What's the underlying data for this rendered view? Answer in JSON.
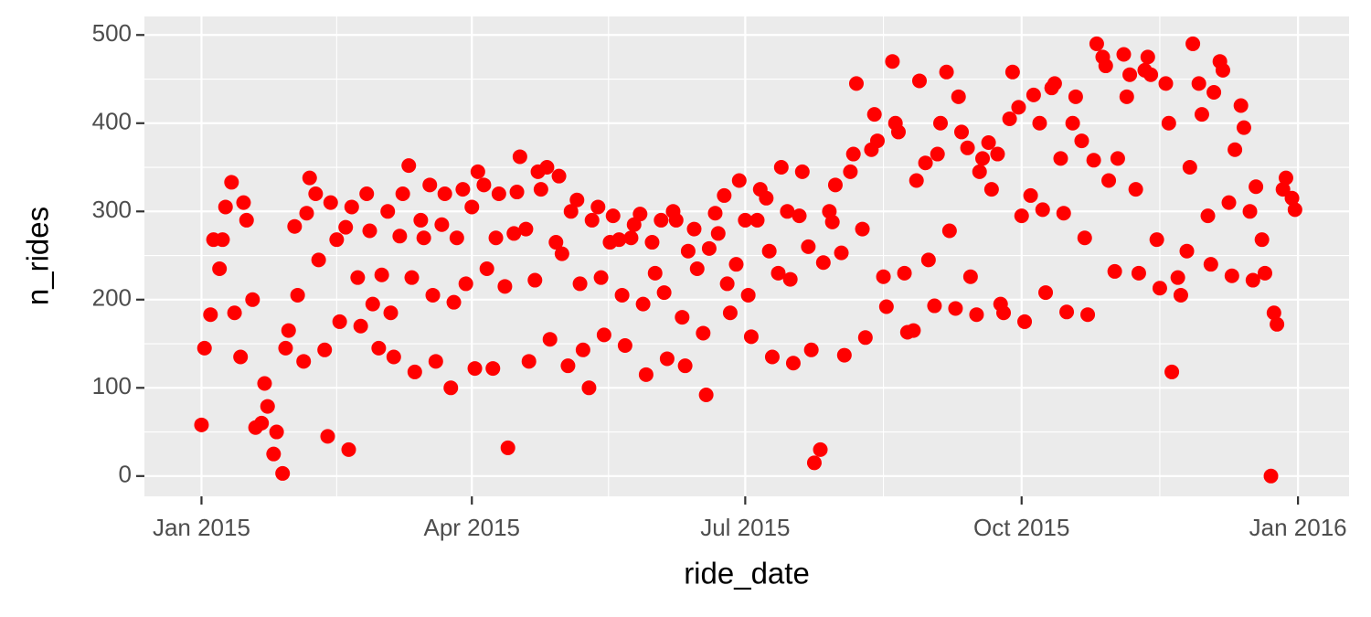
{
  "chart_data": {
    "type": "scatter",
    "x_label": "ride_date",
    "y_label": "n_rides",
    "color": "#ff0000",
    "grid": true,
    "xlim": [
      "2014-12-13",
      "2016-01-18"
    ],
    "xticks": [
      {
        "value": "2015-01-01",
        "label": "Jan 2015"
      },
      {
        "value": "2015-04-01",
        "label": "Apr 2015"
      },
      {
        "value": "2015-07-01",
        "label": "Jul 2015"
      },
      {
        "value": "2015-10-01",
        "label": "Oct 2015"
      },
      {
        "value": "2016-01-01",
        "label": "Jan 2016"
      }
    ],
    "ylim": [
      -23,
      521
    ],
    "yticks": [
      0,
      100,
      200,
      300,
      400,
      500
    ],
    "x": [
      "2015-01-01",
      "2015-01-02",
      "2015-01-04",
      "2015-01-05",
      "2015-01-07",
      "2015-01-08",
      "2015-01-09",
      "2015-01-11",
      "2015-01-12",
      "2015-01-14",
      "2015-01-15",
      "2015-01-16",
      "2015-01-18",
      "2015-01-19",
      "2015-01-21",
      "2015-01-22",
      "2015-01-23",
      "2015-01-25",
      "2015-01-26",
      "2015-01-28",
      "2015-01-29",
      "2015-01-30",
      "2015-02-01",
      "2015-02-02",
      "2015-02-04",
      "2015-02-05",
      "2015-02-06",
      "2015-02-08",
      "2015-02-09",
      "2015-02-11",
      "2015-02-12",
      "2015-02-13",
      "2015-02-15",
      "2015-02-16",
      "2015-02-18",
      "2015-02-19",
      "2015-02-20",
      "2015-02-22",
      "2015-02-23",
      "2015-02-25",
      "2015-02-26",
      "2015-02-27",
      "2015-03-01",
      "2015-03-02",
      "2015-03-04",
      "2015-03-05",
      "2015-03-06",
      "2015-03-08",
      "2015-03-09",
      "2015-03-11",
      "2015-03-12",
      "2015-03-13",
      "2015-03-15",
      "2015-03-16",
      "2015-03-18",
      "2015-03-19",
      "2015-03-20",
      "2015-03-22",
      "2015-03-23",
      "2015-03-25",
      "2015-03-26",
      "2015-03-27",
      "2015-03-29",
      "2015-03-30",
      "2015-04-01",
      "2015-04-02",
      "2015-04-03",
      "2015-04-05",
      "2015-04-06",
      "2015-04-08",
      "2015-04-09",
      "2015-04-10",
      "2015-04-12",
      "2015-04-13",
      "2015-04-15",
      "2015-04-16",
      "2015-04-17",
      "2015-04-19",
      "2015-04-20",
      "2015-04-22",
      "2015-04-23",
      "2015-04-24",
      "2015-04-26",
      "2015-04-27",
      "2015-04-29",
      "2015-04-30",
      "2015-05-01",
      "2015-05-03",
      "2015-05-04",
      "2015-05-06",
      "2015-05-07",
      "2015-05-08",
      "2015-05-10",
      "2015-05-11",
      "2015-05-13",
      "2015-05-14",
      "2015-05-15",
      "2015-05-17",
      "2015-05-18",
      "2015-05-20",
      "2015-05-21",
      "2015-05-22",
      "2015-05-24",
      "2015-05-25",
      "2015-05-27",
      "2015-05-28",
      "2015-05-29",
      "2015-05-31",
      "2015-06-01",
      "2015-06-03",
      "2015-06-04",
      "2015-06-05",
      "2015-06-07",
      "2015-06-08",
      "2015-06-10",
      "2015-06-11",
      "2015-06-12",
      "2015-06-14",
      "2015-06-15",
      "2015-06-17",
      "2015-06-18",
      "2015-06-19",
      "2015-06-21",
      "2015-06-22",
      "2015-06-24",
      "2015-06-25",
      "2015-06-26",
      "2015-06-28",
      "2015-06-29",
      "2015-07-01",
      "2015-07-02",
      "2015-07-03",
      "2015-07-05",
      "2015-07-06",
      "2015-07-08",
      "2015-07-09",
      "2015-07-10",
      "2015-07-12",
      "2015-07-13",
      "2015-07-15",
      "2015-07-16",
      "2015-07-17",
      "2015-07-19",
      "2015-07-20",
      "2015-07-22",
      "2015-07-23",
      "2015-07-24",
      "2015-07-26",
      "2015-07-27",
      "2015-07-29",
      "2015-07-30",
      "2015-07-31",
      "2015-08-02",
      "2015-08-03",
      "2015-08-05",
      "2015-08-06",
      "2015-08-07",
      "2015-08-09",
      "2015-08-10",
      "2015-08-12",
      "2015-08-13",
      "2015-08-14",
      "2015-08-16",
      "2015-08-17",
      "2015-08-19",
      "2015-08-20",
      "2015-08-21",
      "2015-08-23",
      "2015-08-24",
      "2015-08-26",
      "2015-08-27",
      "2015-08-28",
      "2015-08-30",
      "2015-08-31",
      "2015-09-02",
      "2015-09-03",
      "2015-09-04",
      "2015-09-06",
      "2015-09-07",
      "2015-09-09",
      "2015-09-10",
      "2015-09-11",
      "2015-09-13",
      "2015-09-14",
      "2015-09-16",
      "2015-09-17",
      "2015-09-18",
      "2015-09-20",
      "2015-09-21",
      "2015-09-23",
      "2015-09-24",
      "2015-09-25",
      "2015-09-27",
      "2015-09-28",
      "2015-09-30",
      "2015-10-01",
      "2015-10-02",
      "2015-10-04",
      "2015-10-05",
      "2015-10-07",
      "2015-10-08",
      "2015-10-09",
      "2015-10-11",
      "2015-10-12",
      "2015-10-14",
      "2015-10-15",
      "2015-10-16",
      "2015-10-18",
      "2015-10-19",
      "2015-10-21",
      "2015-10-22",
      "2015-10-23",
      "2015-10-25",
      "2015-10-26",
      "2015-10-28",
      "2015-10-29",
      "2015-10-30",
      "2015-11-01",
      "2015-11-02",
      "2015-11-04",
      "2015-11-05",
      "2015-11-06",
      "2015-11-08",
      "2015-11-09",
      "2015-11-11",
      "2015-11-12",
      "2015-11-13",
      "2015-11-15",
      "2015-11-16",
      "2015-11-18",
      "2015-11-19",
      "2015-11-20",
      "2015-11-22",
      "2015-11-23",
      "2015-11-25",
      "2015-11-26",
      "2015-11-27",
      "2015-11-29",
      "2015-11-30",
      "2015-12-02",
      "2015-12-03",
      "2015-12-04",
      "2015-12-06",
      "2015-12-07",
      "2015-12-09",
      "2015-12-10",
      "2015-12-11",
      "2015-12-13",
      "2015-12-14",
      "2015-12-16",
      "2015-12-17",
      "2015-12-18",
      "2015-12-20",
      "2015-12-21",
      "2015-12-23",
      "2015-12-24",
      "2015-12-25",
      "2015-12-27",
      "2015-12-28",
      "2015-12-30",
      "2015-12-31"
    ],
    "values": [
      58,
      145,
      183,
      268,
      235,
      268,
      305,
      333,
      185,
      135,
      310,
      290,
      200,
      55,
      60,
      105,
      79,
      25,
      50,
      3,
      145,
      165,
      283,
      205,
      130,
      298,
      338,
      320,
      245,
      143,
      45,
      310,
      268,
      175,
      282,
      30,
      305,
      225,
      170,
      320,
      278,
      195,
      145,
      228,
      300,
      185,
      135,
      272,
      320,
      352,
      225,
      118,
      290,
      270,
      330,
      205,
      130,
      285,
      320,
      100,
      197,
      270,
      325,
      218,
      305,
      122,
      345,
      330,
      235,
      122,
      270,
      320,
      215,
      32,
      275,
      322,
      362,
      280,
      130,
      222,
      345,
      325,
      350,
      155,
      265,
      340,
      252,
      125,
      300,
      313,
      218,
      143,
      100,
      290,
      305,
      225,
      160,
      265,
      295,
      268,
      205,
      148,
      270,
      285,
      297,
      195,
      115,
      265,
      230,
      290,
      208,
      133,
      300,
      290,
      180,
      125,
      255,
      280,
      235,
      162,
      92,
      258,
      298,
      275,
      318,
      218,
      185,
      240,
      335,
      290,
      205,
      158,
      290,
      325,
      315,
      255,
      135,
      230,
      350,
      300,
      223,
      128,
      295,
      345,
      260,
      143,
      15,
      30,
      242,
      300,
      288,
      330,
      253,
      137,
      345,
      365,
      445,
      280,
      157,
      370,
      410,
      380,
      226,
      192,
      470,
      400,
      390,
      230,
      163,
      165,
      335,
      448,
      355,
      245,
      193,
      365,
      400,
      458,
      278,
      190,
      430,
      390,
      372,
      226,
      183,
      345,
      360,
      378,
      325,
      365,
      195,
      185,
      405,
      458,
      418,
      295,
      175,
      318,
      432,
      400,
      302,
      208,
      440,
      445,
      360,
      298,
      186,
      400,
      430,
      380,
      270,
      183,
      358,
      490,
      475,
      465,
      335,
      232,
      360,
      478,
      430,
      455,
      325,
      230,
      460,
      475,
      455,
      268,
      213,
      445,
      400,
      118,
      225,
      205,
      255,
      350,
      490,
      445,
      410,
      295,
      240,
      435,
      470,
      460,
      310,
      227,
      370,
      420,
      395,
      300,
      222,
      328,
      268,
      230,
      0,
      185,
      172,
      325,
      338,
      315,
      302
    ]
  }
}
